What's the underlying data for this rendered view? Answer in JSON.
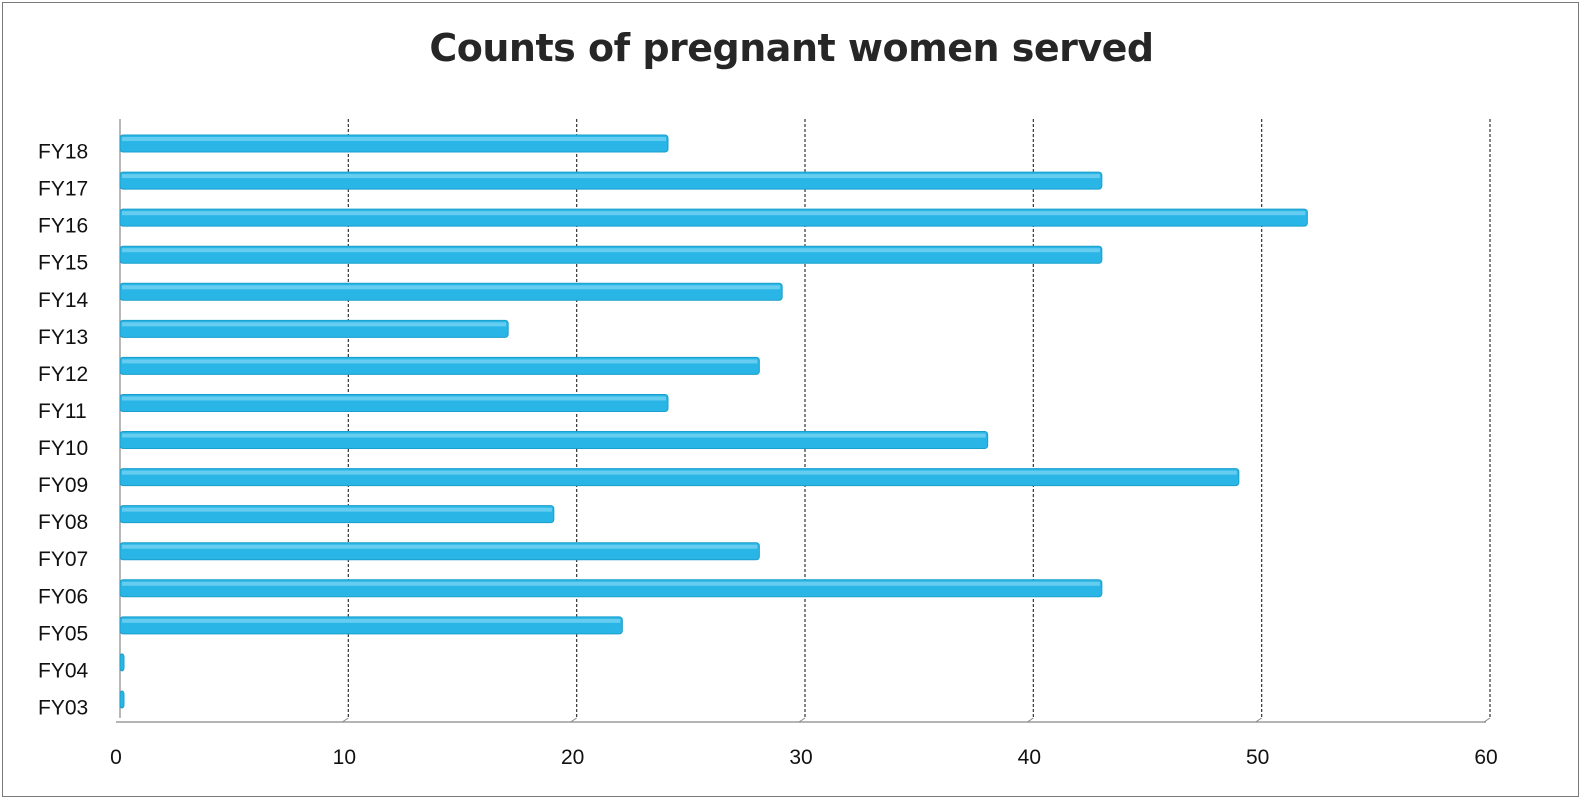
{
  "chart_data": {
    "type": "bar",
    "orientation": "horizontal",
    "title": "Counts of pregnant women served",
    "xlabel": "",
    "ylabel": "",
    "categories": [
      "FY18",
      "FY17",
      "FY16",
      "FY15",
      "FY14",
      "FY13",
      "FY12",
      "FY11",
      "FY10",
      "FY09",
      "FY08",
      "FY07",
      "FY06",
      "FY05",
      "FY04",
      "FY03"
    ],
    "values": [
      24,
      43,
      52,
      43,
      29,
      17,
      28,
      24,
      38,
      49,
      19,
      28,
      43,
      22,
      0,
      0
    ],
    "xlim": [
      0,
      60
    ],
    "xticks": [
      0,
      10,
      20,
      30,
      40,
      50,
      60
    ],
    "grid": "vertical",
    "legend": "none",
    "colors": {
      "bar": "#29b6e6",
      "bar_edge": "#1a9fcc",
      "grid": "#333333",
      "axis": "#888888"
    }
  }
}
